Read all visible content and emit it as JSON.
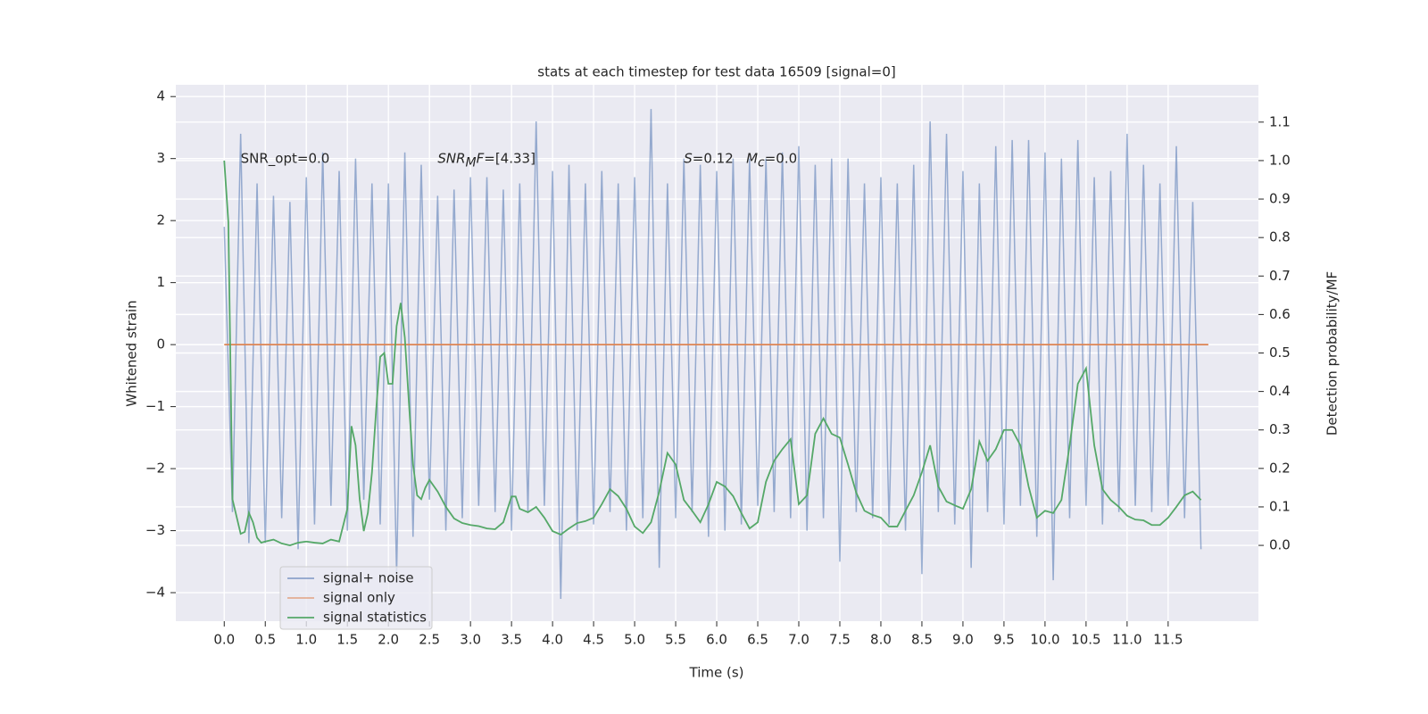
{
  "chart_data": {
    "type": "line",
    "title": "stats at each timestep for test data 16509 [signal=0]",
    "x_label": "Time (s)",
    "y_label": "Whitened strain",
    "y2_label": "Detection probability/MF",
    "xlim": [
      -0.59,
      12.6
    ],
    "ylim": [
      -4.46,
      4.19
    ],
    "y2lim": [
      -0.197,
      1.197
    ],
    "grid": true,
    "legend_loc": "lower left",
    "xticks": [
      {
        "value": 0,
        "label": "0.0"
      },
      {
        "value": 0.5,
        "label": "0.5"
      },
      {
        "value": 1,
        "label": "1.0"
      },
      {
        "value": 1.5,
        "label": "1.5"
      },
      {
        "value": 2,
        "label": "2.0"
      },
      {
        "value": 2.5,
        "label": "2.5"
      },
      {
        "value": 3,
        "label": "3.0"
      },
      {
        "value": 3.5,
        "label": "3.5"
      },
      {
        "value": 4,
        "label": "4.0"
      },
      {
        "value": 4.5,
        "label": "4.5"
      },
      {
        "value": 5,
        "label": "5.0"
      },
      {
        "value": 5.5,
        "label": "5.5"
      },
      {
        "value": 6,
        "label": "6.0"
      },
      {
        "value": 6.5,
        "label": "6.5"
      },
      {
        "value": 7,
        "label": "7.0"
      },
      {
        "value": 7.5,
        "label": "7.5"
      },
      {
        "value": 8,
        "label": "8.0"
      },
      {
        "value": 8.5,
        "label": "8.5"
      },
      {
        "value": 9,
        "label": "9.0"
      },
      {
        "value": 9.5,
        "label": "9.5"
      },
      {
        "value": 10,
        "label": "10.0"
      },
      {
        "value": 10.5,
        "label": "10.5"
      },
      {
        "value": 11,
        "label": "11.0"
      },
      {
        "value": 11.5,
        "label": "11.5"
      }
    ],
    "yticks": [
      {
        "value": -4,
        "label": "−4"
      },
      {
        "value": -3,
        "label": "−3"
      },
      {
        "value": -2,
        "label": "−2"
      },
      {
        "value": -1,
        "label": "−1"
      },
      0,
      1,
      2,
      3,
      4
    ],
    "y2ticks": [
      {
        "value": 0,
        "label": "0.0"
      },
      {
        "value": 0.1,
        "label": "0.1"
      },
      {
        "value": 0.2,
        "label": "0.2"
      },
      {
        "value": 0.3,
        "label": "0.3"
      },
      {
        "value": 0.4,
        "label": "0.4"
      },
      {
        "value": 0.5,
        "label": "0.5"
      },
      {
        "value": 0.6,
        "label": "0.6"
      },
      {
        "value": 0.7,
        "label": "0.7"
      },
      {
        "value": 0.8,
        "label": "0.8"
      },
      {
        "value": 0.9,
        "label": "0.9"
      },
      {
        "value": 1,
        "label": "1.0"
      },
      {
        "value": 1.1,
        "label": "1.1"
      }
    ],
    "annotations": [
      {
        "x": 0.2,
        "y": 3,
        "parts": [
          {
            "text": "SNR_opt=0.0"
          }
        ]
      },
      {
        "x": 2.6,
        "y": 3,
        "parts": [
          {
            "text": "SNR",
            "italic": true
          },
          {
            "text": "M",
            "italic": true,
            "sub": true
          },
          {
            "text": "F",
            "italic": true
          },
          {
            "text": "=[4.33]"
          }
        ]
      },
      {
        "x": 5.6,
        "y": 3,
        "parts": [
          {
            "text": "S",
            "italic": true
          },
          {
            "text": "=0.12   "
          },
          {
            "text": "M",
            "italic": true
          },
          {
            "text": "c",
            "italic": true,
            "sub": true
          },
          {
            "text": "=0.0"
          }
        ]
      }
    ],
    "series": [
      {
        "name": "signal+ noise",
        "color": "#4c72b0",
        "axis": "y",
        "x": [
          0.0,
          0.1,
          0.2,
          0.3,
          0.4,
          0.5,
          0.6,
          0.7,
          0.8,
          0.9,
          1.0,
          1.1,
          1.2,
          1.3,
          1.4,
          1.5,
          1.6,
          1.7,
          1.8,
          1.9,
          2.0,
          2.1,
          2.2,
          2.3,
          2.4,
          2.5,
          2.6,
          2.7,
          2.8,
          2.9,
          3.0,
          3.1,
          3.2,
          3.3,
          3.4,
          3.5,
          3.6,
          3.7,
          3.8,
          3.9,
          4.0,
          4.1,
          4.2,
          4.3,
          4.4,
          4.5,
          4.6,
          4.7,
          4.8,
          4.9,
          5.0,
          5.1,
          5.2,
          5.3,
          5.4,
          5.5,
          5.6,
          5.7,
          5.8,
          5.9,
          6.0,
          6.1,
          6.2,
          6.3,
          6.4,
          6.5,
          6.6,
          6.7,
          6.8,
          6.9,
          7.0,
          7.1,
          7.2,
          7.3,
          7.4,
          7.5,
          7.6,
          7.7,
          7.8,
          7.9,
          8.0,
          8.1,
          8.2,
          8.3,
          8.4,
          8.5,
          8.6,
          8.7,
          8.8,
          8.9,
          9.0,
          9.1,
          9.2,
          9.3,
          9.4,
          9.5,
          9.6,
          9.7,
          9.8,
          9.9,
          10.0,
          10.1,
          10.2,
          10.3,
          10.4,
          10.5,
          10.6,
          10.7,
          10.8,
          10.9,
          11.0,
          11.1,
          11.2,
          11.3,
          11.4,
          11.5,
          11.6,
          11.7,
          11.8,
          11.9
        ],
        "values": [
          1.9,
          -2.7,
          3.4,
          -3.2,
          2.6,
          -3.2,
          2.4,
          -2.8,
          2.3,
          -3.3,
          2.7,
          -2.9,
          3.1,
          -2.6,
          2.8,
          -3.0,
          3.0,
          -2.5,
          2.6,
          -2.9,
          2.6,
          -3.7,
          3.1,
          -3.1,
          2.9,
          -2.5,
          2.4,
          -3.0,
          2.5,
          -2.8,
          2.7,
          -2.6,
          2.7,
          -2.7,
          2.5,
          -3.0,
          2.6,
          -2.7,
          3.6,
          -2.6,
          2.8,
          -4.1,
          2.9,
          -3.0,
          2.6,
          -2.9,
          2.8,
          -2.7,
          2.6,
          -3.0,
          2.7,
          -2.8,
          3.8,
          -3.6,
          2.6,
          -2.8,
          3.0,
          -2.7,
          2.9,
          -3.1,
          2.8,
          -3.0,
          3.0,
          -2.9,
          3.0,
          -2.6,
          3.0,
          -2.7,
          3.1,
          -2.8,
          3.2,
          -3.0,
          2.9,
          -2.8,
          3.0,
          -3.5,
          3.0,
          -2.7,
          2.6,
          -2.8,
          2.7,
          -2.9,
          2.6,
          -3.0,
          2.9,
          -3.7,
          3.6,
          -2.7,
          3.4,
          -2.9,
          2.8,
          -3.6,
          2.6,
          -2.7,
          3.2,
          -2.9,
          3.3,
          -2.6,
          3.3,
          -3.1,
          3.1,
          -3.8,
          3.0,
          -2.8,
          3.3,
          -2.6,
          2.7,
          -2.9,
          2.8,
          -2.7,
          3.4,
          -2.6,
          2.9,
          -2.7,
          2.6,
          -2.6,
          3.2,
          -2.8,
          2.3,
          -3.3
        ]
      },
      {
        "name": "signal only",
        "color": "#dd8452",
        "axis": "y",
        "x": [
          0.0,
          11.99
        ],
        "values": [
          0,
          0
        ]
      },
      {
        "name": "signal statistics",
        "color": "#55a868",
        "axis": "y2",
        "x": [
          0.0,
          0.05,
          0.1,
          0.2,
          0.25,
          0.3,
          0.35,
          0.4,
          0.45,
          0.5,
          0.6,
          0.7,
          0.8,
          0.9,
          1.0,
          1.1,
          1.2,
          1.3,
          1.4,
          1.5,
          1.55,
          1.6,
          1.65,
          1.7,
          1.75,
          1.8,
          1.85,
          1.9,
          1.95,
          2.0,
          2.05,
          2.1,
          2.15,
          2.2,
          2.25,
          2.3,
          2.35,
          2.4,
          2.45,
          2.5,
          2.6,
          2.7,
          2.8,
          2.9,
          3.0,
          3.1,
          3.2,
          3.3,
          3.4,
          3.5,
          3.55,
          3.6,
          3.7,
          3.8,
          3.9,
          4.0,
          4.1,
          4.2,
          4.3,
          4.4,
          4.5,
          4.6,
          4.7,
          4.8,
          4.9,
          5.0,
          5.1,
          5.2,
          5.3,
          5.4,
          5.5,
          5.6,
          5.7,
          5.8,
          5.9,
          6.0,
          6.1,
          6.2,
          6.3,
          6.4,
          6.5,
          6.6,
          6.7,
          6.8,
          6.9,
          7.0,
          7.1,
          7.2,
          7.3,
          7.4,
          7.5,
          7.6,
          7.7,
          7.8,
          7.9,
          8.0,
          8.1,
          8.2,
          8.3,
          8.4,
          8.5,
          8.6,
          8.7,
          8.8,
          8.9,
          9.0,
          9.1,
          9.2,
          9.3,
          9.4,
          9.5,
          9.6,
          9.7,
          9.8,
          9.9,
          10.0,
          10.1,
          10.2,
          10.3,
          10.4,
          10.5,
          10.6,
          10.7,
          10.8,
          10.9,
          11.0,
          11.1,
          11.2,
          11.3,
          11.4,
          11.5,
          11.6,
          11.7,
          11.8,
          11.9
        ],
        "values": [
          1.0,
          0.84,
          0.12,
          0.03,
          0.035,
          0.085,
          0.06,
          0.02,
          0.007,
          0.01,
          0.015,
          0.005,
          0,
          0.007,
          0.01,
          0.007,
          0.005,
          0.015,
          0.01,
          0.095,
          0.31,
          0.26,
          0.12,
          0.037,
          0.085,
          0.19,
          0.35,
          0.49,
          0.5,
          0.42,
          0.42,
          0.57,
          0.63,
          0.54,
          0.37,
          0.21,
          0.13,
          0.12,
          0.15,
          0.17,
          0.14,
          0.1,
          0.07,
          0.058,
          0.053,
          0.05,
          0.044,
          0.042,
          0.06,
          0.127,
          0.127,
          0.095,
          0.086,
          0.1,
          0.072,
          0.037,
          0.028,
          0.044,
          0.058,
          0.063,
          0.072,
          0.107,
          0.146,
          0.128,
          0.095,
          0.049,
          0.032,
          0.06,
          0.14,
          0.24,
          0.21,
          0.118,
          0.09,
          0.06,
          0.107,
          0.165,
          0.153,
          0.128,
          0.084,
          0.044,
          0.06,
          0.165,
          0.22,
          0.25,
          0.276,
          0.107,
          0.13,
          0.29,
          0.33,
          0.29,
          0.28,
          0.21,
          0.137,
          0.09,
          0.079,
          0.072,
          0.049,
          0.049,
          0.09,
          0.13,
          0.19,
          0.26,
          0.153,
          0.114,
          0.104,
          0.095,
          0.146,
          0.27,
          0.22,
          0.25,
          0.3,
          0.3,
          0.26,
          0.153,
          0.072,
          0.09,
          0.084,
          0.118,
          0.26,
          0.42,
          0.46,
          0.26,
          0.146,
          0.118,
          0.1,
          0.077,
          0.067,
          0.065,
          0.053,
          0.053,
          0.072,
          0.1,
          0.13,
          0.14,
          0.118
        ]
      }
    ]
  }
}
